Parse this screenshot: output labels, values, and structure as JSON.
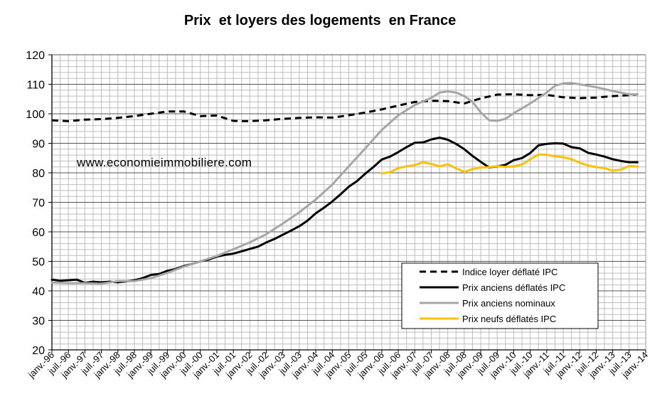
{
  "chart_data": {
    "type": "line",
    "title": "Prix  et loyers des logements  en France",
    "watermark": "www.economieimmobiliere.com",
    "xlabel": "",
    "ylabel": "",
    "ylim": [
      20,
      120
    ],
    "yticks": [
      20,
      30,
      40,
      50,
      60,
      70,
      80,
      90,
      100,
      110,
      120
    ],
    "grid": true,
    "legend_position": "bottom-right",
    "xlim": [
      1996.0,
      2014.0
    ],
    "xtick_labels": [
      "janv.-96",
      "juil.-96",
      "janv.-97",
      "juil.-97",
      "janv.-98",
      "juil.-98",
      "janv.-99",
      "juil.-99",
      "janv.-00",
      "juil.-00",
      "janv.-01",
      "juil.-01",
      "janv.-02",
      "juil.-02",
      "janv.-03",
      "juil.-03",
      "janv.-04",
      "juil.-04",
      "janv.-05",
      "juil.-05",
      "janv.-06",
      "juil.-06",
      "janv.-07",
      "juil.-07",
      "janv.-08",
      "juil.-08",
      "janv.-09",
      "juil.-09",
      "janv.-10",
      "juil.-10",
      "janv.-11",
      "juil.-11",
      "janv.-12",
      "juil.-12",
      "janv.-13",
      "juil.-13",
      "janv.-14"
    ],
    "series": [
      {
        "name": "Indice loyer déflaté IPC",
        "color": "#000000",
        "dash": "dashed",
        "x": [
          1996.0,
          1996.5,
          1997.0,
          1997.5,
          1998.0,
          1998.5,
          1999.0,
          1999.5,
          2000.0,
          2000.5,
          2001.0,
          2001.5,
          2002.0,
          2002.5,
          2003.0,
          2003.5,
          2004.0,
          2004.5,
          2005.0,
          2005.5,
          2006.0,
          2006.5,
          2007.0,
          2007.5,
          2008.0,
          2008.5,
          2009.0,
          2009.5,
          2010.0,
          2010.5,
          2011.0,
          2011.5,
          2012.0,
          2012.5,
          2013.0,
          2013.5,
          2013.75
        ],
        "y": [
          97.8,
          97.5,
          98.0,
          98.2,
          98.6,
          99.2,
          100.0,
          100.8,
          100.8,
          99.2,
          99.4,
          97.6,
          97.5,
          97.8,
          98.3,
          98.6,
          98.8,
          98.7,
          99.5,
          100.4,
          101.5,
          102.8,
          104.0,
          104.4,
          104.3,
          103.5,
          105.2,
          106.5,
          106.6,
          106.3,
          106.4,
          105.6,
          105.3,
          105.5,
          106.0,
          106.3,
          106.6
        ]
      },
      {
        "name": "Prix anciens déflatés IPC",
        "color": "#000000",
        "dash": "solid",
        "x": [
          1996.0,
          1996.25,
          1996.5,
          1996.75,
          1997.0,
          1997.25,
          1997.5,
          1997.75,
          1998.0,
          1998.25,
          1998.5,
          1998.75,
          1999.0,
          1999.25,
          1999.5,
          1999.75,
          2000.0,
          2000.25,
          2000.5,
          2000.75,
          2001.0,
          2001.25,
          2001.5,
          2001.75,
          2002.0,
          2002.25,
          2002.5,
          2002.75,
          2003.0,
          2003.25,
          2003.5,
          2003.75,
          2004.0,
          2004.25,
          2004.5,
          2004.75,
          2005.0,
          2005.25,
          2005.5,
          2005.75,
          2006.0,
          2006.25,
          2006.5,
          2006.75,
          2007.0,
          2007.25,
          2007.5,
          2007.75,
          2008.0,
          2008.25,
          2008.5,
          2008.75,
          2009.0,
          2009.25,
          2009.5,
          2009.75,
          2010.0,
          2010.25,
          2010.5,
          2010.75,
          2011.0,
          2011.25,
          2011.5,
          2011.75,
          2012.0,
          2012.25,
          2012.5,
          2012.75,
          2013.0,
          2013.25,
          2013.5,
          2013.75
        ],
        "y": [
          43.8,
          43.4,
          43.6,
          43.8,
          42.7,
          43.1,
          42.9,
          43.1,
          42.9,
          43.2,
          43.6,
          44.3,
          45.4,
          45.7,
          46.8,
          47.4,
          48.4,
          49.1,
          50.0,
          50.6,
          51.6,
          52.2,
          52.6,
          53.4,
          54.2,
          55.0,
          56.4,
          57.6,
          59.0,
          60.4,
          61.9,
          63.8,
          66.3,
          68.2,
          70.3,
          72.7,
          75.3,
          77.2,
          79.7,
          82.0,
          84.5,
          85.5,
          87.0,
          88.7,
          90.2,
          90.3,
          91.3,
          91.9,
          91.2,
          89.8,
          88.0,
          85.7,
          83.7,
          81.8,
          82.2,
          82.7,
          84.3,
          85.0,
          86.7,
          89.3,
          89.8,
          90.0,
          89.9,
          88.7,
          88.3,
          86.8,
          86.2,
          85.5,
          84.6,
          84.0,
          83.6,
          83.6
        ]
      },
      {
        "name": "Prix anciens nominaux",
        "color": "#a6a6a6",
        "dash": "solid",
        "x": [
          1996.0,
          1996.5,
          1997.0,
          1997.5,
          1998.0,
          1998.5,
          1999.0,
          1999.5,
          2000.0,
          2000.5,
          2001.0,
          2001.5,
          2002.0,
          2002.5,
          2003.0,
          2003.5,
          2004.0,
          2004.5,
          2005.0,
          2005.5,
          2006.0,
          2006.5,
          2007.0,
          2007.5,
          2007.75,
          2008.0,
          2008.25,
          2008.5,
          2008.75,
          2009.0,
          2009.25,
          2009.5,
          2009.75,
          2010.0,
          2010.5,
          2011.0,
          2011.25,
          2011.5,
          2011.75,
          2012.0,
          2012.5,
          2013.0,
          2013.5,
          2013.75
        ],
        "y": [
          42.8,
          42.6,
          42.6,
          42.4,
          43.3,
          43.3,
          44.3,
          46.1,
          48.2,
          50.0,
          51.8,
          54.1,
          56.4,
          59.2,
          62.8,
          66.6,
          71.0,
          76.0,
          82.2,
          88.3,
          94.5,
          99.5,
          103.0,
          105.4,
          107.2,
          107.6,
          107.2,
          106.0,
          104.0,
          100.5,
          97.8,
          97.6,
          98.3,
          100.2,
          103.5,
          107.2,
          109.5,
          110.3,
          110.4,
          110.0,
          109.0,
          107.7,
          106.6,
          106.6
        ]
      },
      {
        "name": "Prix neufs déflatés IPC",
        "color": "#ffc000",
        "dash": "solid",
        "x": [
          2006.0,
          2006.25,
          2006.5,
          2006.75,
          2007.0,
          2007.25,
          2007.5,
          2007.75,
          2008.0,
          2008.25,
          2008.5,
          2008.75,
          2009.0,
          2009.25,
          2009.5,
          2009.75,
          2010.0,
          2010.25,
          2010.5,
          2010.75,
          2011.0,
          2011.25,
          2011.5,
          2011.75,
          2012.0,
          2012.25,
          2012.5,
          2012.75,
          2013.0,
          2013.25,
          2013.5,
          2013.75
        ],
        "y": [
          79.8,
          80.2,
          81.6,
          82.2,
          82.6,
          83.6,
          83.0,
          82.2,
          82.9,
          81.5,
          80.3,
          81.3,
          81.8,
          81.9,
          82.3,
          82.0,
          82.2,
          82.8,
          84.6,
          86.2,
          86.1,
          85.6,
          85.3,
          84.6,
          83.4,
          82.5,
          81.9,
          81.6,
          80.7,
          81.1,
          82.3,
          82.1
        ]
      }
    ]
  }
}
